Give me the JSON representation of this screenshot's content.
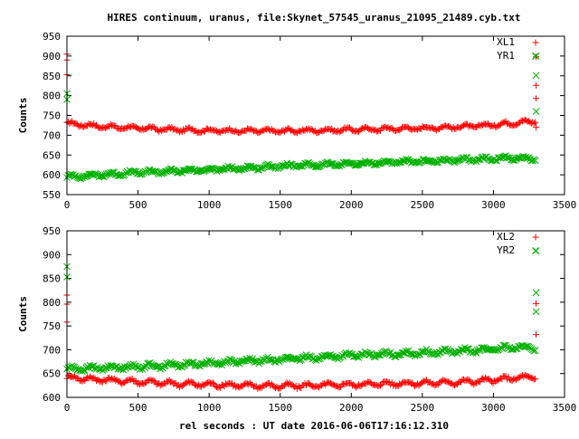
{
  "colors": {
    "xl": "#ff0000",
    "yr": "#00b000",
    "axis": "#000000"
  },
  "chart_data": [
    {
      "type": "scatter",
      "title": "HIRES continuum, uranus, file:Skynet_57545_uranus_21095_21489.cyb.txt",
      "ylabel": "Counts",
      "xlim": [
        0,
        3500
      ],
      "ylim": [
        550,
        950
      ],
      "xticks": [
        "0",
        "500",
        "1000",
        "1500",
        "2000",
        "2500",
        "3000",
        "3500"
      ],
      "yticks": [
        "550",
        "600",
        "650",
        "700",
        "750",
        "800",
        "850",
        "900",
        "950"
      ],
      "legend": "top-right",
      "series": [
        {
          "name": "XL1",
          "marker": "+",
          "x": [
            0,
            250,
            500,
            750,
            1000,
            1250,
            1500,
            1750,
            2000,
            2250,
            2500,
            2750,
            3000,
            3150,
            3300
          ],
          "y": [
            730,
            722,
            718,
            714,
            712,
            711,
            711,
            712,
            714,
            716,
            718,
            721,
            726,
            731,
            736
          ],
          "outliers": {
            "x": [
              0,
              0,
              0,
              3300,
              3300,
              3300,
              3300
            ],
            "y": [
              905,
              890,
              853,
              898,
              826,
              793,
              720
            ]
          }
        },
        {
          "name": "YR1",
          "marker": "x",
          "x": [
            0,
            250,
            500,
            750,
            1000,
            1250,
            1500,
            1750,
            2000,
            2250,
            2500,
            2750,
            3000,
            3150,
            3300
          ],
          "y": [
            595,
            600,
            606,
            609,
            613,
            617,
            622,
            625,
            628,
            631,
            634,
            637,
            641,
            643,
            640
          ],
          "outliers": {
            "x": [
              0,
              0,
              3300,
              3300,
              3300
            ],
            "y": [
              805,
              790,
              851,
              760,
              900
            ]
          }
        }
      ]
    },
    {
      "type": "scatter",
      "xlabel": "rel seconds : UT date 2016-06-06T17:16:12.310",
      "ylabel": "Counts",
      "xlim": [
        0,
        3500
      ],
      "ylim": [
        600,
        950
      ],
      "xticks": [
        "0",
        "500",
        "1000",
        "1500",
        "2000",
        "2500",
        "3000",
        "3500"
      ],
      "yticks": [
        "600",
        "650",
        "700",
        "750",
        "800",
        "850",
        "900",
        "950"
      ],
      "legend": "top-right",
      "series": [
        {
          "name": "XL2",
          "marker": "+",
          "x": [
            0,
            250,
            500,
            750,
            1000,
            1250,
            1500,
            1750,
            2000,
            2250,
            2500,
            2750,
            3000,
            3150,
            3300
          ],
          "y": [
            642,
            637,
            633,
            629,
            627,
            625,
            624,
            625,
            627,
            629,
            630,
            632,
            636,
            641,
            642
          ],
          "outliers": {
            "x": [
              0,
              0,
              0,
              3300,
              3300
            ],
            "y": [
              815,
              796,
              758,
              797,
              732
            ]
          }
        },
        {
          "name": "YR2",
          "marker": "x",
          "x": [
            0,
            250,
            500,
            750,
            1000,
            1250,
            1500,
            1750,
            2000,
            2250,
            2500,
            2750,
            3000,
            3150,
            3300
          ],
          "y": [
            660,
            662,
            665,
            668,
            672,
            676,
            680,
            684,
            688,
            691,
            694,
            697,
            701,
            705,
            703
          ],
          "outliers": {
            "x": [
              0,
              0,
              3300,
              3300,
              3300
            ],
            "y": [
              875,
              853,
              908,
              820,
              780
            ]
          }
        }
      ]
    }
  ]
}
